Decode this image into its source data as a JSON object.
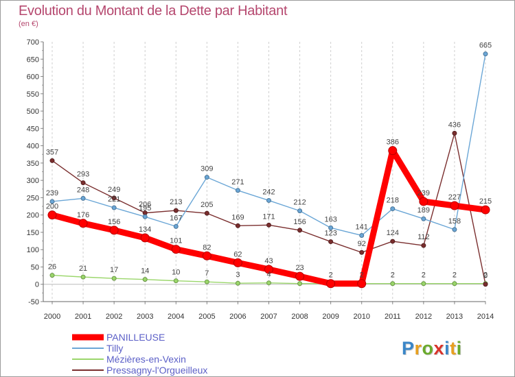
{
  "title": "Evolution du Montant de la Dette par Habitant",
  "subtitle": "(en €)",
  "logo": {
    "text": "Proxiti",
    "letter_colors": [
      "#3a86c8",
      "#e8a020",
      "#6aaa2c",
      "#d9332a",
      "#3a86c8",
      "#e8a020",
      "#6aaa2c"
    ]
  },
  "chart_data": {
    "type": "line",
    "title": "Evolution du Montant de la Dette par Habitant",
    "subtitle": "(en €)",
    "x": [
      "2000",
      "2001",
      "2002",
      "2003",
      "2004",
      "2005",
      "2006",
      "2007",
      "2008",
      "2009",
      "2010",
      "2011",
      "2012",
      "2013",
      "2014"
    ],
    "ylim": [
      -50,
      700
    ],
    "yticks": [
      -50,
      0,
      50,
      100,
      150,
      200,
      250,
      300,
      350,
      400,
      450,
      500,
      550,
      600,
      650,
      700
    ],
    "grid": {
      "vertical": true,
      "horizontal": false
    },
    "legend_position": "bottom-left",
    "series": [
      {
        "name": "PANILLEUSE",
        "color": "#ff0000",
        "values": [
          200,
          176,
          156,
          134,
          101,
          82,
          62,
          43,
          23,
          2,
          2,
          386,
          239,
          227,
          215
        ],
        "labels": [
          "200",
          "176",
          "156",
          "134",
          "101",
          "82",
          "62",
          "43",
          "23",
          "2",
          "2",
          "386",
          "239",
          "227",
          "215"
        ]
      },
      {
        "name": "Tilly",
        "color": "#6aa6d6",
        "values": [
          239,
          248,
          221,
          195,
          167,
          309,
          271,
          242,
          212,
          163,
          141,
          218,
          189,
          158,
          665
        ],
        "labels": [
          "239",
          "248",
          "221",
          "195",
          "167",
          "309",
          "271",
          "242",
          "212",
          "163",
          "141",
          "218",
          "189",
          "158",
          "665"
        ]
      },
      {
        "name": "Mézières-en-Vexin",
        "color": "#9ad66a",
        "values": [
          26,
          21,
          17,
          14,
          10,
          7,
          3,
          4,
          2,
          2,
          2,
          2,
          2,
          2,
          2
        ],
        "labels": [
          "26",
          "21",
          "17",
          "14",
          "10",
          "7",
          "3",
          "4",
          "",
          "",
          "",
          "2",
          "2",
          "2",
          "2"
        ]
      },
      {
        "name": "Pressagny-l'Orgueilleux",
        "color": "#7a2e2e",
        "values": [
          357,
          293,
          249,
          206,
          213,
          205,
          169,
          171,
          156,
          123,
          92,
          124,
          112,
          436,
          0
        ],
        "labels": [
          "357",
          "293",
          "249",
          "206",
          "213",
          "205",
          "169",
          "171",
          "156",
          "123",
          "92",
          "124",
          "112",
          "436",
          "0"
        ]
      }
    ]
  }
}
